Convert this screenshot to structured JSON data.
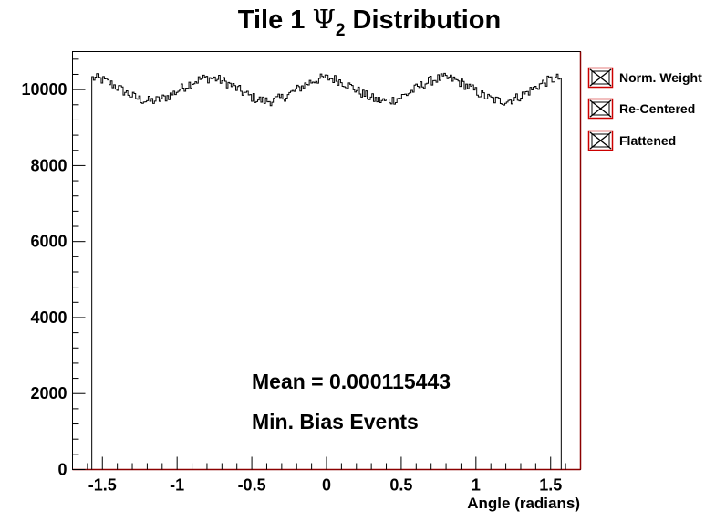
{
  "chart_data": {
    "type": "line",
    "title_prefix": "Tile 1 ",
    "title_symbol": "Ψ",
    "title_subscript": "2",
    "title_suffix": " Distribution",
    "xlabel": "Angle (radians)",
    "ylabel": "",
    "xlim": [
      -1.7,
      1.7
    ],
    "ylim": [
      0,
      11000
    ],
    "x_ticks": [
      -1.5,
      -1,
      -0.5,
      0,
      0.5,
      1,
      1.5
    ],
    "x_tick_labels": [
      "-1.5",
      "-1",
      "-0.5",
      "0",
      "0.5",
      "1",
      "1.5"
    ],
    "y_ticks": [
      0,
      2000,
      4000,
      6000,
      8000,
      10000
    ],
    "y_tick_labels": [
      "0",
      "2000",
      "4000",
      "6000",
      "8000",
      "10000"
    ],
    "x_range": [
      -1.5708,
      1.5708
    ],
    "bins": 300,
    "mean_level": 10000,
    "modulation_amplitude": 300,
    "modulation_frequency": 8,
    "annotations": [
      "Mean = 0.000115443",
      "Min. Bias Events"
    ],
    "legend_position": "right, outside plot",
    "legend": [
      {
        "label": "Norm. Weight"
      },
      {
        "label": "Re-Centered"
      },
      {
        "label": "Flattened"
      }
    ],
    "colors": {
      "histogram": "#000000",
      "frame_edge": "#8b0000",
      "legend_marker": "#000000",
      "legend_border": "#cc0000"
    }
  }
}
